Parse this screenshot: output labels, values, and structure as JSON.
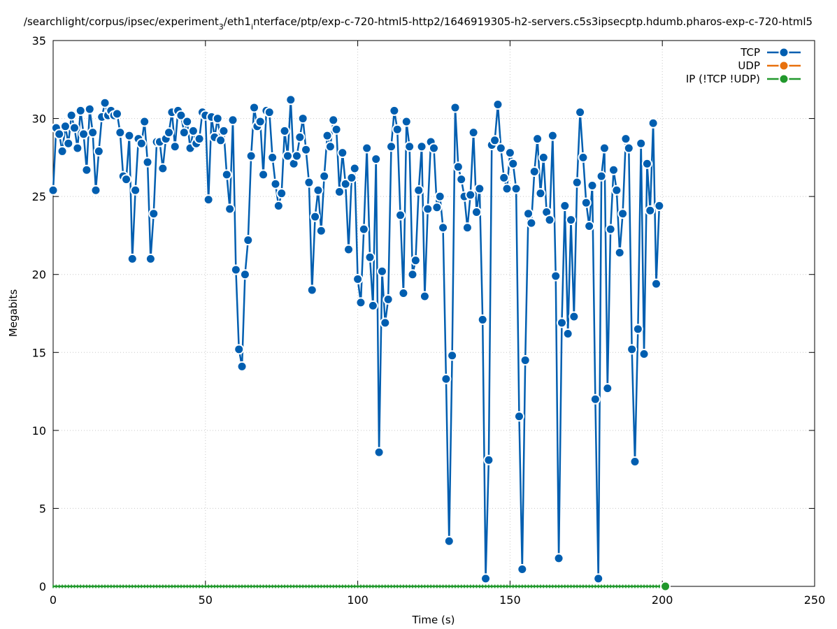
{
  "chart_data": {
    "type": "line",
    "title": "/searchlight/corpus/ipsec/experiment_3/eth1_interface/ptp/exp-c-720-html5-http2/1646919305-h2-servers.c5s3ipsecptp.hdumb.pharos-exp-c-720-html5",
    "title_main": "/searchlight/corpus/ipsec/experiment",
    "title_sub1": "3",
    "title_mid": "/eth1",
    "title_sub2": "i",
    "title_rest": "nterface/ptp/exp-c-720-html5-http2/1646919305-h2-servers.c5s3ipsecptp.hdumb.pharos-exp-c-720-html5",
    "xlabel": "Time (s)",
    "ylabel": "Megabits",
    "xlim": [
      0,
      250
    ],
    "ylim": [
      0,
      35
    ],
    "x_ticks": [
      "0",
      "50",
      "100",
      "150",
      "200",
      "250"
    ],
    "y_ticks": [
      "0",
      "5",
      "10",
      "15",
      "20",
      "25",
      "30",
      "35"
    ],
    "grid": true,
    "legend_position": "top-right",
    "series": [
      {
        "name": "TCP",
        "color": "#005eb0",
        "values": [
          25.4,
          29.4,
          29.0,
          27.9,
          29.5,
          28.4,
          30.2,
          29.4,
          28.1,
          30.5,
          29.0,
          26.7,
          30.6,
          29.1,
          25.4,
          27.9,
          30.1,
          31.0,
          30.2,
          30.5,
          30.2,
          30.3,
          29.1,
          26.3,
          26.1,
          28.9,
          21.0,
          25.4,
          28.7,
          28.4,
          29.8,
          27.2,
          21.0,
          23.9,
          28.5,
          28.5,
          26.8,
          28.7,
          29.1,
          30.4,
          28.2,
          30.5,
          30.2,
          29.1,
          29.8,
          28.1,
          29.2,
          28.4,
          28.7,
          30.4,
          30.2,
          24.8,
          30.1,
          28.8,
          30.0,
          28.6,
          29.2,
          26.4,
          24.2,
          29.9,
          20.3,
          15.2,
          14.1,
          20.0,
          22.2,
          27.6,
          30.7,
          29.5,
          29.8,
          26.4,
          30.5,
          30.4,
          27.5,
          25.8,
          24.4,
          25.2,
          29.2,
          27.6,
          31.2,
          27.1,
          27.6,
          28.8,
          30.0,
          28.0,
          25.9,
          19.0,
          23.7,
          25.4,
          22.8,
          26.3,
          28.9,
          28.2,
          29.9,
          29.3,
          25.3,
          27.8,
          25.8,
          21.6,
          26.2,
          26.8,
          19.7,
          18.2,
          22.9,
          28.1,
          21.1,
          18.0,
          27.4,
          8.6,
          20.2,
          16.9,
          18.4,
          28.2,
          30.5,
          29.3,
          23.8,
          18.8,
          29.8,
          28.2,
          20.0,
          20.9,
          25.4,
          28.2,
          18.6,
          24.2,
          28.5,
          28.1,
          24.3,
          25.0,
          23.0,
          13.3,
          2.9,
          14.8,
          30.7,
          26.9,
          26.1,
          25.0,
          23.0,
          25.1,
          29.1,
          24.0,
          25.5,
          17.1,
          0.5,
          8.1,
          28.3,
          28.6,
          30.9,
          28.1,
          26.2,
          25.5,
          27.8,
          27.1,
          25.5,
          10.9,
          1.1,
          14.5,
          23.9,
          23.3,
          26.6,
          28.7,
          25.2,
          27.5,
          24.0,
          23.5,
          28.9,
          19.9,
          1.8,
          16.9,
          24.4,
          16.2,
          23.5,
          17.3,
          25.9,
          30.4,
          27.5,
          24.6,
          23.1,
          25.7,
          12.0,
          0.5,
          26.3,
          28.1,
          12.7,
          22.9,
          26.7,
          25.4,
          21.4,
          23.9,
          28.7,
          28.1,
          15.2,
          8.0,
          16.5,
          28.4,
          14.9,
          27.1,
          24.1,
          29.7,
          19.4,
          24.4
        ]
      },
      {
        "name": "UDP",
        "color": "#e8700c",
        "values": []
      },
      {
        "name": "IP (!TCP  !UDP)",
        "color": "#21982c",
        "x": [
          0,
          1,
          2,
          3,
          4,
          5,
          6,
          7,
          8,
          9,
          10,
          11,
          12,
          13,
          14,
          15,
          16,
          17,
          18,
          19,
          20,
          21,
          22,
          23,
          24,
          25,
          26,
          27,
          28,
          29,
          30,
          31,
          32,
          33,
          34,
          35,
          36,
          37,
          38,
          39,
          40,
          41,
          42,
          43,
          44,
          45,
          46,
          47,
          48,
          49,
          50,
          51,
          52,
          53,
          54,
          55,
          56,
          57,
          58,
          59,
          60,
          61,
          62,
          63,
          64,
          65,
          66,
          67,
          68,
          69,
          70,
          71,
          72,
          73,
          74,
          75,
          76,
          77,
          78,
          79,
          80,
          81,
          82,
          83,
          84,
          85,
          86,
          87,
          88,
          89,
          90,
          91,
          92,
          93,
          94,
          95,
          96,
          97,
          98,
          99,
          100,
          101,
          102,
          103,
          104,
          105,
          106,
          107,
          108,
          109,
          110,
          111,
          112,
          113,
          114,
          115,
          116,
          117,
          118,
          119,
          120,
          121,
          122,
          123,
          124,
          125,
          126,
          127,
          128,
          129,
          130,
          131,
          132,
          133,
          134,
          135,
          136,
          137,
          138,
          139,
          140,
          141,
          142,
          143,
          144,
          145,
          146,
          147,
          148,
          149,
          150,
          151,
          152,
          153,
          154,
          155,
          156,
          157,
          158,
          159,
          160,
          161,
          162,
          163,
          164,
          165,
          166,
          167,
          168,
          169,
          170,
          171,
          172,
          173,
          174,
          175,
          176,
          177,
          178,
          179,
          180,
          181,
          182,
          183,
          184,
          185,
          186,
          187,
          188,
          189,
          190,
          191,
          192,
          193,
          194,
          195,
          196,
          197,
          198,
          199,
          200,
          201
        ],
        "values": [
          0,
          0,
          0,
          0,
          0,
          0,
          0,
          0,
          0,
          0,
          0,
          0,
          0,
          0,
          0,
          0,
          0,
          0,
          0,
          0,
          0,
          0,
          0,
          0,
          0,
          0,
          0,
          0,
          0,
          0,
          0,
          0,
          0,
          0,
          0,
          0,
          0,
          0,
          0,
          0,
          0,
          0,
          0,
          0,
          0,
          0,
          0,
          0,
          0,
          0,
          0,
          0,
          0,
          0,
          0,
          0,
          0,
          0,
          0,
          0,
          0,
          0,
          0,
          0,
          0,
          0,
          0,
          0,
          0,
          0,
          0,
          0,
          0,
          0,
          0,
          0,
          0,
          0,
          0,
          0,
          0,
          0,
          0,
          0,
          0,
          0,
          0,
          0,
          0,
          0,
          0,
          0,
          0,
          0,
          0,
          0,
          0,
          0,
          0,
          0,
          0,
          0,
          0,
          0,
          0,
          0,
          0,
          0,
          0,
          0,
          0,
          0,
          0,
          0,
          0,
          0,
          0,
          0,
          0,
          0,
          0,
          0,
          0,
          0,
          0,
          0,
          0,
          0,
          0,
          0,
          0,
          0,
          0,
          0,
          0,
          0,
          0,
          0,
          0,
          0,
          0,
          0,
          0,
          0,
          0,
          0,
          0,
          0,
          0,
          0,
          0,
          0,
          0,
          0,
          0,
          0,
          0,
          0,
          0,
          0,
          0,
          0,
          0,
          0,
          0,
          0,
          0,
          0,
          0,
          0,
          0,
          0,
          0,
          0,
          0,
          0,
          0,
          0,
          0,
          0,
          0,
          0,
          0,
          0,
          0,
          0,
          0,
          0,
          0,
          0,
          0,
          0,
          0,
          0,
          0,
          0,
          0,
          0,
          0,
          0,
          0,
          0
        ]
      }
    ]
  }
}
